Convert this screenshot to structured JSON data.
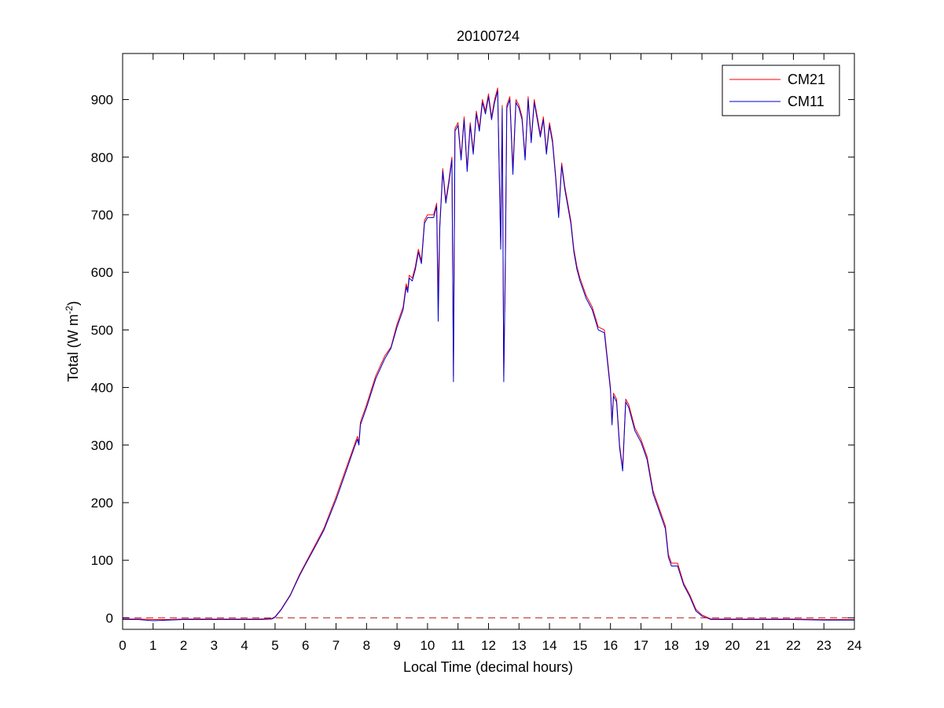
{
  "chart_data": {
    "type": "line",
    "title": "20100724",
    "xlabel": "Local Time (decimal hours)",
    "ylabel": {
      "main": "Total (W m",
      "sup": "-2",
      "close": ")"
    },
    "xlim": [
      0,
      24
    ],
    "ylim": [
      -20,
      980
    ],
    "xticks": [
      0,
      1,
      2,
      3,
      4,
      5,
      6,
      7,
      8,
      9,
      10,
      11,
      12,
      13,
      14,
      15,
      16,
      17,
      18,
      19,
      20,
      21,
      22,
      23,
      24
    ],
    "yticks": [
      0,
      100,
      200,
      300,
      400,
      500,
      600,
      700,
      800,
      900
    ],
    "grid": false,
    "legend_position": "top-right",
    "reference_line": {
      "y": 0,
      "style": "dashed",
      "color": "#b22222"
    },
    "series": [
      {
        "name": "CM21",
        "color": "#ff0000",
        "x": [
          0,
          0.5,
          1,
          1.5,
          2,
          3,
          4,
          4.5,
          4.9,
          5,
          5.2,
          5.5,
          5.8,
          6,
          6.3,
          6.6,
          7,
          7.3,
          7.6,
          7.7,
          7.75,
          7.8,
          8,
          8.3,
          8.6,
          8.8,
          9,
          9.2,
          9.3,
          9.35,
          9.4,
          9.5,
          9.6,
          9.7,
          9.8,
          9.9,
          10,
          10.2,
          10.3,
          10.35,
          10.4,
          10.5,
          10.6,
          10.7,
          10.8,
          10.85,
          10.9,
          11,
          11.1,
          11.2,
          11.3,
          11.4,
          11.5,
          11.6,
          11.7,
          11.8,
          11.9,
          12,
          12.1,
          12.2,
          12.3,
          12.4,
          12.45,
          12.5,
          12.55,
          12.6,
          12.7,
          12.8,
          12.9,
          13,
          13.1,
          13.2,
          13.3,
          13.4,
          13.5,
          13.6,
          13.7,
          13.8,
          13.9,
          14,
          14.1,
          14.2,
          14.3,
          14.4,
          14.5,
          14.6,
          14.7,
          14.8,
          14.9,
          15,
          15.2,
          15.4,
          15.6,
          15.8,
          16,
          16.05,
          16.1,
          16.2,
          16.3,
          16.4,
          16.5,
          16.6,
          16.8,
          17,
          17.2,
          17.4,
          17.6,
          17.8,
          17.9,
          18,
          18.2,
          18.4,
          18.6,
          18.8,
          19,
          19.3,
          19.6,
          19.8,
          20,
          21,
          22,
          23,
          24
        ],
        "y": [
          -2,
          -2,
          -3,
          -3,
          -2,
          -2,
          -2,
          -2,
          -1,
          2,
          15,
          40,
          75,
          95,
          125,
          155,
          210,
          255,
          300,
          315,
          305,
          340,
          370,
          420,
          455,
          470,
          510,
          540,
          580,
          570,
          595,
          590,
          610,
          640,
          620,
          690,
          700,
          700,
          720,
          560,
          680,
          780,
          725,
          760,
          800,
          420,
          850,
          860,
          800,
          870,
          780,
          860,
          810,
          880,
          850,
          900,
          880,
          910,
          870,
          900,
          920,
          650,
          890,
          420,
          610,
          890,
          905,
          780,
          900,
          890,
          870,
          800,
          905,
          830,
          900,
          870,
          840,
          870,
          810,
          860,
          830,
          770,
          700,
          790,
          750,
          720,
          690,
          640,
          610,
          590,
          560,
          540,
          505,
          500,
          400,
          340,
          390,
          380,
          300,
          260,
          380,
          370,
          330,
          310,
          280,
          220,
          190,
          160,
          110,
          95,
          95,
          60,
          40,
          15,
          5,
          -2,
          -2,
          -2,
          -2,
          -2,
          -2,
          -3,
          -3
        ]
      },
      {
        "name": "CM11",
        "color": "#0000cc",
        "x": [
          0,
          0.5,
          1,
          1.5,
          2,
          3,
          4,
          4.5,
          4.9,
          5,
          5.2,
          5.5,
          5.8,
          6,
          6.3,
          6.6,
          7,
          7.3,
          7.6,
          7.7,
          7.75,
          7.8,
          8,
          8.3,
          8.6,
          8.8,
          9,
          9.2,
          9.3,
          9.35,
          9.4,
          9.5,
          9.6,
          9.7,
          9.8,
          9.9,
          10,
          10.2,
          10.3,
          10.35,
          10.4,
          10.5,
          10.6,
          10.7,
          10.8,
          10.85,
          10.9,
          11,
          11.1,
          11.2,
          11.3,
          11.4,
          11.5,
          11.6,
          11.7,
          11.8,
          11.9,
          12,
          12.1,
          12.2,
          12.3,
          12.4,
          12.45,
          12.5,
          12.55,
          12.6,
          12.7,
          12.8,
          12.9,
          13,
          13.1,
          13.2,
          13.3,
          13.4,
          13.5,
          13.6,
          13.7,
          13.8,
          13.9,
          14,
          14.1,
          14.2,
          14.3,
          14.4,
          14.5,
          14.6,
          14.7,
          14.8,
          14.9,
          15,
          15.2,
          15.4,
          15.6,
          15.8,
          16,
          16.05,
          16.1,
          16.2,
          16.3,
          16.4,
          16.5,
          16.6,
          16.8,
          17,
          17.2,
          17.4,
          17.6,
          17.8,
          17.9,
          18,
          18.2,
          18.4,
          18.6,
          18.8,
          19,
          19.3,
          19.6,
          19.8,
          20,
          21,
          22,
          23,
          24
        ],
        "y": [
          -3,
          -3,
          -5,
          -4,
          -3,
          -3,
          -3,
          -3,
          -2,
          1,
          14,
          39,
          73,
          93,
          122,
          152,
          205,
          250,
          296,
          310,
          300,
          335,
          365,
          415,
          450,
          468,
          505,
          535,
          575,
          565,
          590,
          585,
          605,
          635,
          615,
          685,
          695,
          695,
          715,
          515,
          675,
          775,
          720,
          755,
          795,
          410,
          845,
          855,
          795,
          865,
          775,
          855,
          805,
          875,
          845,
          895,
          875,
          905,
          865,
          895,
          915,
          640,
          885,
          410,
          600,
          885,
          900,
          770,
          895,
          885,
          865,
          795,
          900,
          825,
          895,
          865,
          835,
          865,
          805,
          855,
          825,
          765,
          695,
          785,
          745,
          715,
          685,
          635,
          605,
          585,
          555,
          535,
          500,
          495,
          395,
          335,
          385,
          375,
          295,
          255,
          375,
          365,
          325,
          305,
          275,
          215,
          185,
          155,
          105,
          90,
          90,
          57,
          37,
          12,
          3,
          -3,
          -3,
          -3,
          -3,
          -3,
          -3,
          -4,
          -4
        ]
      }
    ]
  }
}
